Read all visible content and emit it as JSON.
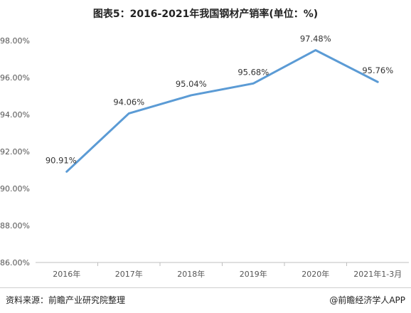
{
  "title": "图表5：2016-2021年我国钢材产销率(单位：%)",
  "source": "资料来源：前瞻产业研究院整理",
  "credit": "@前瞻经济学人APP",
  "colors": {
    "line": "#5b9bd5",
    "axis": "#bfbfbf"
  },
  "chart_data": {
    "type": "line",
    "title": "图表5：2016-2021年我国钢材产销率(单位：%)",
    "xlabel": "",
    "ylabel": "",
    "categories": [
      "2016年",
      "2017年",
      "2018年",
      "2019年",
      "2020年",
      "2021年1-3月"
    ],
    "values": [
      90.91,
      94.06,
      95.04,
      95.68,
      97.48,
      95.76
    ],
    "data_labels": [
      "90.91%",
      "94.06%",
      "95.04%",
      "95.68%",
      "97.48%",
      "95.76%"
    ],
    "ylim": [
      86,
      98
    ],
    "yticks": [
      "86.00%",
      "88.00%",
      "90.00%",
      "92.00%",
      "94.00%",
      "96.00%",
      "98.00%"
    ],
    "grid": false,
    "legend": "none"
  }
}
